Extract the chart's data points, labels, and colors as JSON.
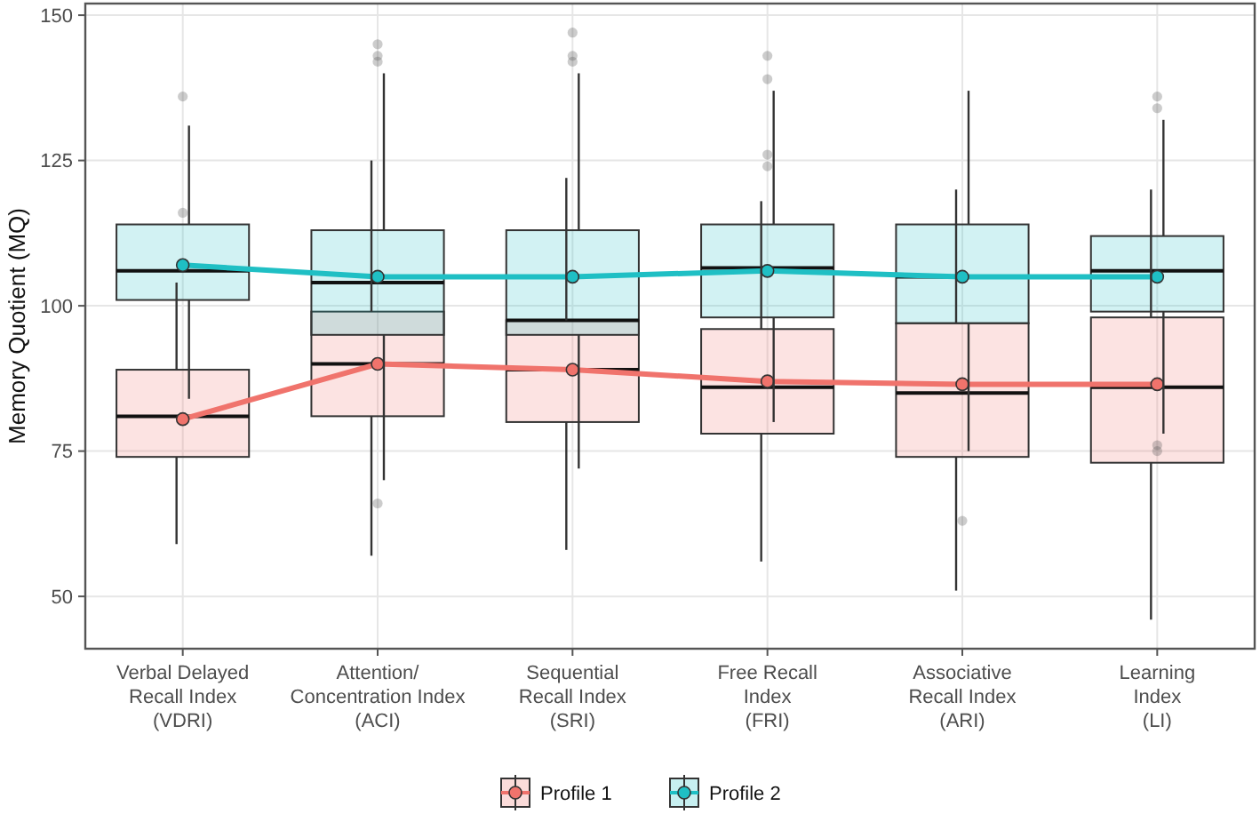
{
  "chart_data": {
    "type": "box",
    "ylabel": "Memory Quotient (MQ)",
    "categories": [
      "Verbal Delayed\nRecall Index\n(VDRI)",
      "Attention/\nConcentration Index\n(ACI)",
      "Sequential\nRecall Index\n(SRI)",
      "Free Recall\nIndex\n(FRI)",
      "Associative\nRecall Index\n(ARI)",
      "Learning\nIndex\n(LI)"
    ],
    "ylim": [
      41,
      152
    ],
    "yticks": [
      50,
      75,
      100,
      125,
      150
    ],
    "grid": true,
    "legend": "bottom",
    "marker": "circle",
    "series": [
      {
        "name": "Profile 1",
        "color": "#f0736c",
        "boxes": [
          {
            "low": 59,
            "q1": 74,
            "median": 81,
            "q3": 89,
            "high": 104,
            "outliers": [
              116
            ]
          },
          {
            "low": 57,
            "q1": 81,
            "median": 90,
            "q3": 99,
            "high": 125,
            "outliers": [
              66
            ]
          },
          {
            "low": 58,
            "q1": 80,
            "median": 89,
            "q3": 97.5,
            "high": 122
          },
          {
            "low": 56,
            "q1": 78,
            "median": 86,
            "q3": 96,
            "high": 118
          },
          {
            "low": 51,
            "q1": 74,
            "median": 85,
            "q3": 97,
            "high": 120,
            "outliers": [
              63
            ]
          },
          {
            "low": 46,
            "q1": 73,
            "median": 86,
            "q3": 98,
            "high": 120
          }
        ]
      },
      {
        "name": "Profile 2",
        "color": "#1fbfc4",
        "boxes": [
          {
            "low": 84,
            "q1": 101,
            "median": 106,
            "q3": 114,
            "high": 131,
            "outliers": [
              136
            ]
          },
          {
            "low": 70,
            "q1": 95,
            "median": 104,
            "q3": 113,
            "high": 140,
            "outliers": [
              142,
              143,
              145
            ]
          },
          {
            "low": 72,
            "q1": 95,
            "median": 97.5,
            "q3": 113,
            "high": 140,
            "outliers": [
              142,
              143,
              147
            ]
          },
          {
            "low": 80,
            "q1": 98,
            "median": 106.5,
            "q3": 114,
            "high": 137,
            "outliers": [
              124,
              126,
              139,
              143
            ]
          },
          {
            "low": 75,
            "q1": 97,
            "median": 105,
            "q3": 114,
            "high": 137
          },
          {
            "low": 78,
            "q1": 99,
            "median": 106,
            "q3": 112,
            "high": 132,
            "outliers": [
              75,
              76,
              134,
              136
            ]
          }
        ]
      },
      {
        "type": "line",
        "color": "#f0736c",
        "values": [
          80.5,
          90,
          89,
          87,
          86.5,
          86.5
        ]
      },
      {
        "type": "line",
        "color": "#1fbfc4",
        "values": [
          107,
          105,
          105,
          106,
          105,
          105
        ]
      }
    ]
  }
}
